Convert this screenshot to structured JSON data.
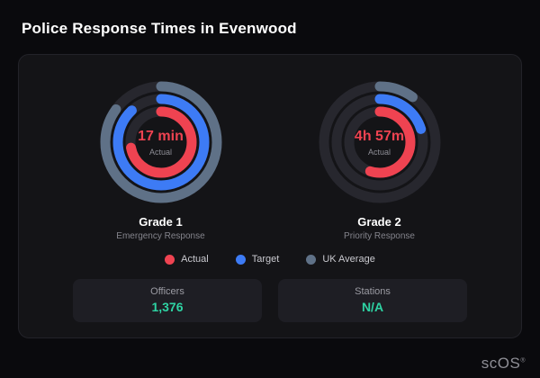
{
  "header": {
    "title": "Police Response Times in Evenwood"
  },
  "brand": {
    "name": "scOS",
    "registered": "®"
  },
  "colors": {
    "background": "#0a0a0d",
    "card": "#141417",
    "actual": "#ef4351",
    "target": "#3d7bf5",
    "uk_average": "#5f7187",
    "ring_track": "#27272e",
    "stat_value": "#2ed3a3"
  },
  "chart_data": [
    {
      "type": "radial-gauge",
      "title": "Grade 1",
      "subtitle": "Emergency Response",
      "center_value": "17 min",
      "center_label": "Actual",
      "rings": [
        {
          "name": "UK Average",
          "color": "#5f7187",
          "percent": 85
        },
        {
          "name": "Target",
          "color": "#3d7bf5",
          "percent": 88
        },
        {
          "name": "Actual",
          "color": "#ef4351",
          "percent": 72
        }
      ]
    },
    {
      "type": "radial-gauge",
      "title": "Grade 2",
      "subtitle": "Priority Response",
      "center_value": "4h 57m",
      "center_label": "Actual",
      "rings": [
        {
          "name": "UK Average",
          "color": "#5f7187",
          "percent": 10
        },
        {
          "name": "Target",
          "color": "#3d7bf5",
          "percent": 20
        },
        {
          "name": "Actual",
          "color": "#ef4351",
          "percent": 55
        }
      ]
    }
  ],
  "legend": {
    "items": [
      {
        "label": "Actual",
        "color": "#ef4351"
      },
      {
        "label": "Target",
        "color": "#3d7bf5"
      },
      {
        "label": "UK Average",
        "color": "#5f7187"
      }
    ]
  },
  "stats": {
    "items": [
      {
        "label": "Officers",
        "value": "1,376"
      },
      {
        "label": "Stations",
        "value": "N/A"
      }
    ]
  }
}
